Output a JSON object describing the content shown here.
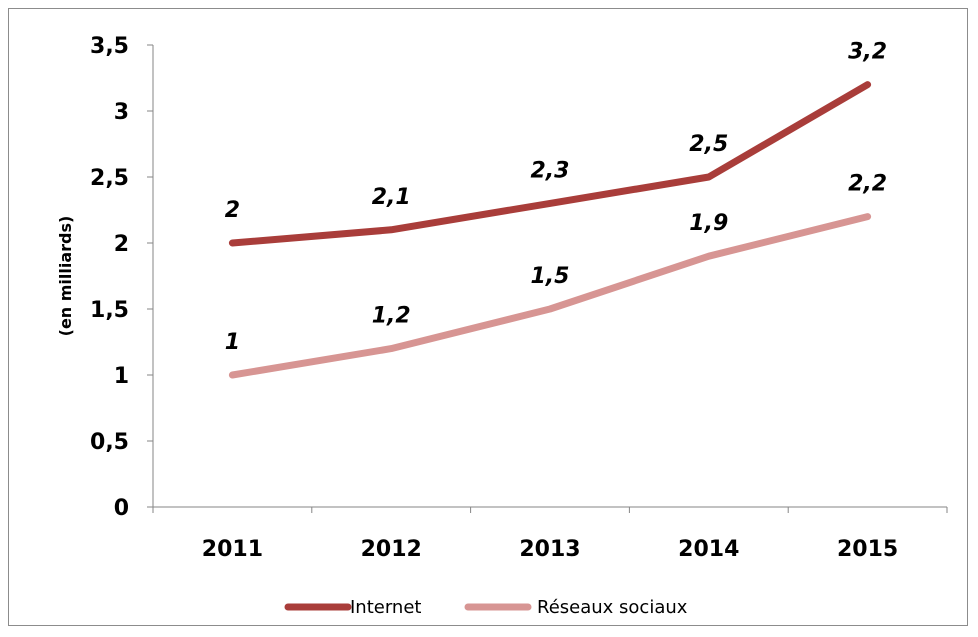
{
  "chart_data": {
    "type": "line",
    "title": "",
    "xlabel": "",
    "ylabel": "(en milliards)",
    "categories": [
      "2011",
      "2012",
      "2013",
      "2014",
      "2015"
    ],
    "ylim": [
      0,
      3.5
    ],
    "yticks": [
      0,
      0.5,
      1,
      1.5,
      2,
      2.5,
      3,
      3.5
    ],
    "ytick_labels": [
      "0",
      "0,5",
      "1",
      "1,5",
      "2",
      "2,5",
      "3",
      "3,5"
    ],
    "grid": false,
    "legend_position": "bottom",
    "series": [
      {
        "name": "Internet",
        "values": [
          2,
          2.1,
          2.3,
          2.5,
          3.2
        ],
        "labels": [
          "2",
          "2,1",
          "2,3",
          "2,5",
          "3,2"
        ],
        "color": "#a93d3a"
      },
      {
        "name": "Réseaux sociaux",
        "values": [
          1,
          1.2,
          1.5,
          1.9,
          2.2
        ],
        "labels": [
          "1",
          "1,2",
          "1,5",
          "1,9",
          "2,2"
        ],
        "color": "#d79593"
      }
    ]
  }
}
